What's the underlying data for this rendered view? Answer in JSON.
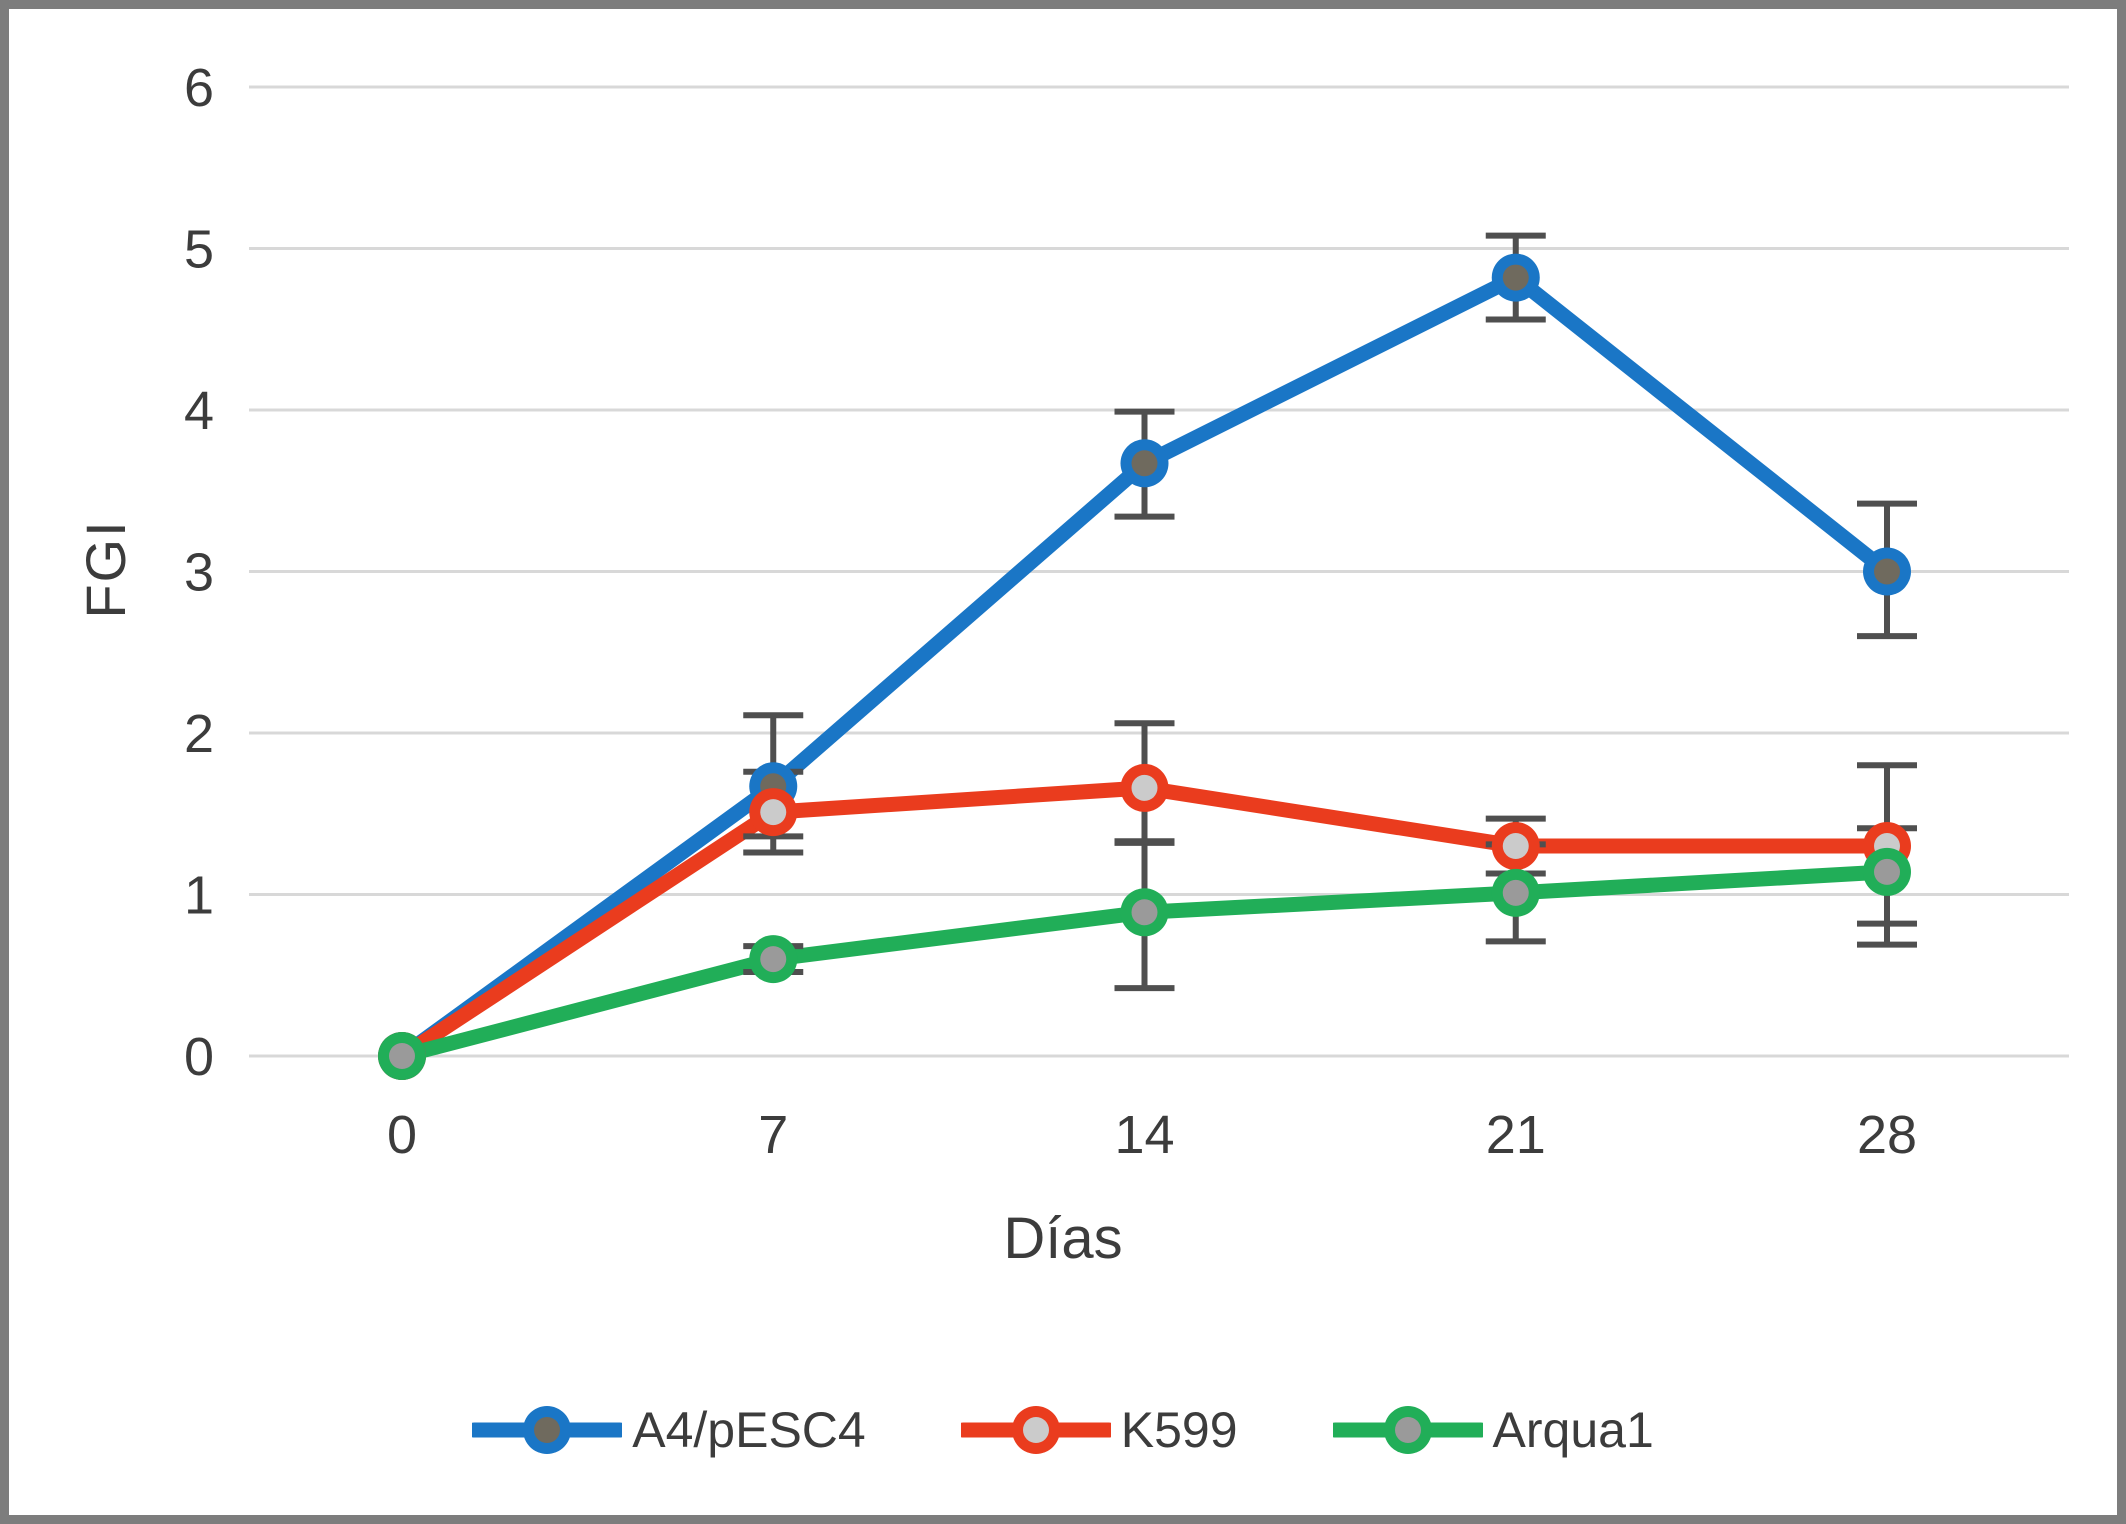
{
  "chart_data": {
    "type": "line",
    "title": "",
    "xlabel": "Días",
    "ylabel": "FGI",
    "x": [
      0,
      7,
      14,
      21,
      28
    ],
    "ylim": [
      0,
      6
    ],
    "ytick_step": 1,
    "grid": true,
    "legend_position": "bottom",
    "series": [
      {
        "id": "a4-pesc4",
        "name": "A4/pESC4",
        "color": "#1a76c6",
        "marker_fill": "#6f6a5e",
        "values": [
          0,
          1.67,
          3.67,
          4.82,
          3.0
        ],
        "err_plus": [
          0,
          0.44,
          0.32,
          0.26,
          0.42
        ],
        "err_minus": [
          0,
          0.31,
          0.33,
          0.26,
          0.4
        ]
      },
      {
        "id": "k599",
        "name": "K599",
        "color": "#ea3c1e",
        "marker_fill": "#cbcbcb",
        "values": [
          0,
          1.51,
          1.66,
          1.3,
          1.3
        ],
        "err_plus": [
          0,
          0.25,
          0.4,
          0.17,
          0.5
        ],
        "err_minus": [
          0,
          0.25,
          0.34,
          0.17,
          0.48
        ]
      },
      {
        "id": "arqua1",
        "name": "Arqua1",
        "color": "#21ae58",
        "marker_fill": "#9a9a9a",
        "values": [
          0,
          0.6,
          0.89,
          1.01,
          1.14
        ],
        "err_plus": [
          0,
          0.08,
          0.44,
          0.3,
          0.27
        ],
        "err_minus": [
          0,
          0.08,
          0.47,
          0.3,
          0.45
        ]
      }
    ],
    "colors": {
      "gridline": "#d8d8d8",
      "error_bar": "#4f4f4f",
      "text": "#3c3c3c",
      "frame": "#7d7d7d",
      "background": "#ffffff"
    }
  }
}
